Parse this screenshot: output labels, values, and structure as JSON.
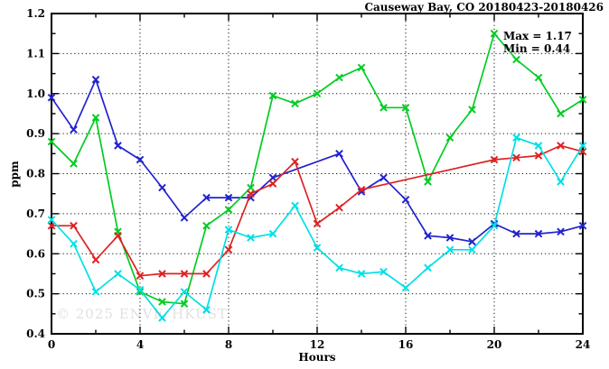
{
  "watermark": "© 2025 ENVF, HKUST",
  "chart_data": {
    "type": "line",
    "title": "Causeway Bay, CO 20180423-20180426",
    "xlabel": "Hours",
    "ylabel": "ppm",
    "xlim": [
      0,
      24
    ],
    "ylim": [
      0.4,
      1.2
    ],
    "x_major_ticks": [
      0,
      4,
      8,
      12,
      16,
      20,
      24
    ],
    "x_minor_step": 2,
    "y_major_ticks": [
      0.4,
      0.5,
      0.6,
      0.7,
      0.8,
      0.9,
      1.0,
      1.1,
      1.2
    ],
    "y_minor_step": 0.05,
    "grid": "dotted-at-major-ticks",
    "legend": "none",
    "annotations": [
      "Max = 1.17",
      "Min = 0.44"
    ],
    "marker": "x-cross",
    "series": [
      {
        "name": "series-blue",
        "color": "#2222cc",
        "points": [
          [
            0,
            0.99
          ],
          [
            1,
            0.91
          ],
          [
            2,
            1.035
          ],
          [
            3,
            0.87
          ],
          [
            4,
            0.835
          ],
          [
            5,
            0.765
          ],
          [
            6,
            0.69
          ],
          [
            7,
            0.74
          ],
          [
            8,
            0.74
          ],
          [
            9,
            0.74
          ],
          [
            10,
            0.79
          ],
          [
            13,
            0.85
          ],
          [
            14,
            0.755
          ],
          [
            15,
            0.79
          ],
          [
            16,
            0.735
          ],
          [
            17,
            0.645
          ],
          [
            18,
            0.64
          ],
          [
            19,
            0.63
          ],
          [
            20,
            0.675
          ],
          [
            21,
            0.65
          ],
          [
            22,
            0.65
          ],
          [
            23,
            0.655
          ],
          [
            24,
            0.67
          ]
        ]
      },
      {
        "name": "series-green",
        "color": "#00cc22",
        "points": [
          [
            0,
            0.88
          ],
          [
            1,
            0.825
          ],
          [
            2,
            0.94
          ],
          [
            3,
            0.655
          ],
          [
            4,
            0.505
          ],
          [
            5,
            0.48
          ],
          [
            6,
            0.475
          ],
          [
            7,
            0.67
          ],
          [
            8,
            0.71
          ],
          [
            9,
            0.765
          ],
          [
            10,
            0.995
          ],
          [
            11,
            0.975
          ],
          [
            12,
            1.0
          ],
          [
            13,
            1.04
          ],
          [
            14,
            1.065
          ],
          [
            15,
            0.965
          ],
          [
            16,
            0.965
          ],
          [
            17,
            0.78
          ],
          [
            18,
            0.89
          ],
          [
            19,
            0.96
          ],
          [
            20,
            1.15
          ],
          [
            21,
            1.085
          ],
          [
            22,
            1.04
          ],
          [
            23,
            0.95
          ],
          [
            24,
            0.985
          ]
        ]
      },
      {
        "name": "series-red",
        "color": "#dd2222",
        "points": [
          [
            0,
            0.67
          ],
          [
            1,
            0.67
          ],
          [
            2,
            0.585
          ],
          [
            3,
            0.645
          ],
          [
            4,
            0.545
          ],
          [
            5,
            0.55
          ],
          [
            6,
            0.55
          ],
          [
            7,
            0.55
          ],
          [
            8,
            0.61
          ],
          [
            9,
            0.75
          ],
          [
            10,
            0.775
          ],
          [
            11,
            0.83
          ],
          [
            12,
            0.675
          ],
          [
            13,
            0.715
          ],
          [
            14,
            0.76
          ],
          [
            20,
            0.835
          ],
          [
            21,
            0.84
          ],
          [
            22,
            0.845
          ],
          [
            23,
            0.87
          ],
          [
            24,
            0.855
          ]
        ]
      },
      {
        "name": "series-cyan",
        "color": "#00dfe6",
        "points": [
          [
            0,
            0.685
          ],
          [
            1,
            0.625
          ],
          [
            2,
            0.505
          ],
          [
            3,
            0.55
          ],
          [
            4,
            0.51
          ],
          [
            5,
            0.44
          ],
          [
            6,
            0.505
          ],
          [
            7,
            0.46
          ],
          [
            8,
            0.66
          ],
          [
            9,
            0.64
          ],
          [
            10,
            0.65
          ],
          [
            11,
            0.72
          ],
          [
            12,
            0.615
          ],
          [
            13,
            0.565
          ],
          [
            14,
            0.55
          ],
          [
            15,
            0.555
          ],
          [
            16,
            0.515
          ],
          [
            17,
            0.565
          ],
          [
            18,
            0.61
          ],
          [
            19,
            0.61
          ],
          [
            20,
            0.67
          ],
          [
            21,
            0.89
          ],
          [
            22,
            0.87
          ],
          [
            23,
            0.78
          ],
          [
            24,
            0.87
          ]
        ]
      }
    ]
  }
}
